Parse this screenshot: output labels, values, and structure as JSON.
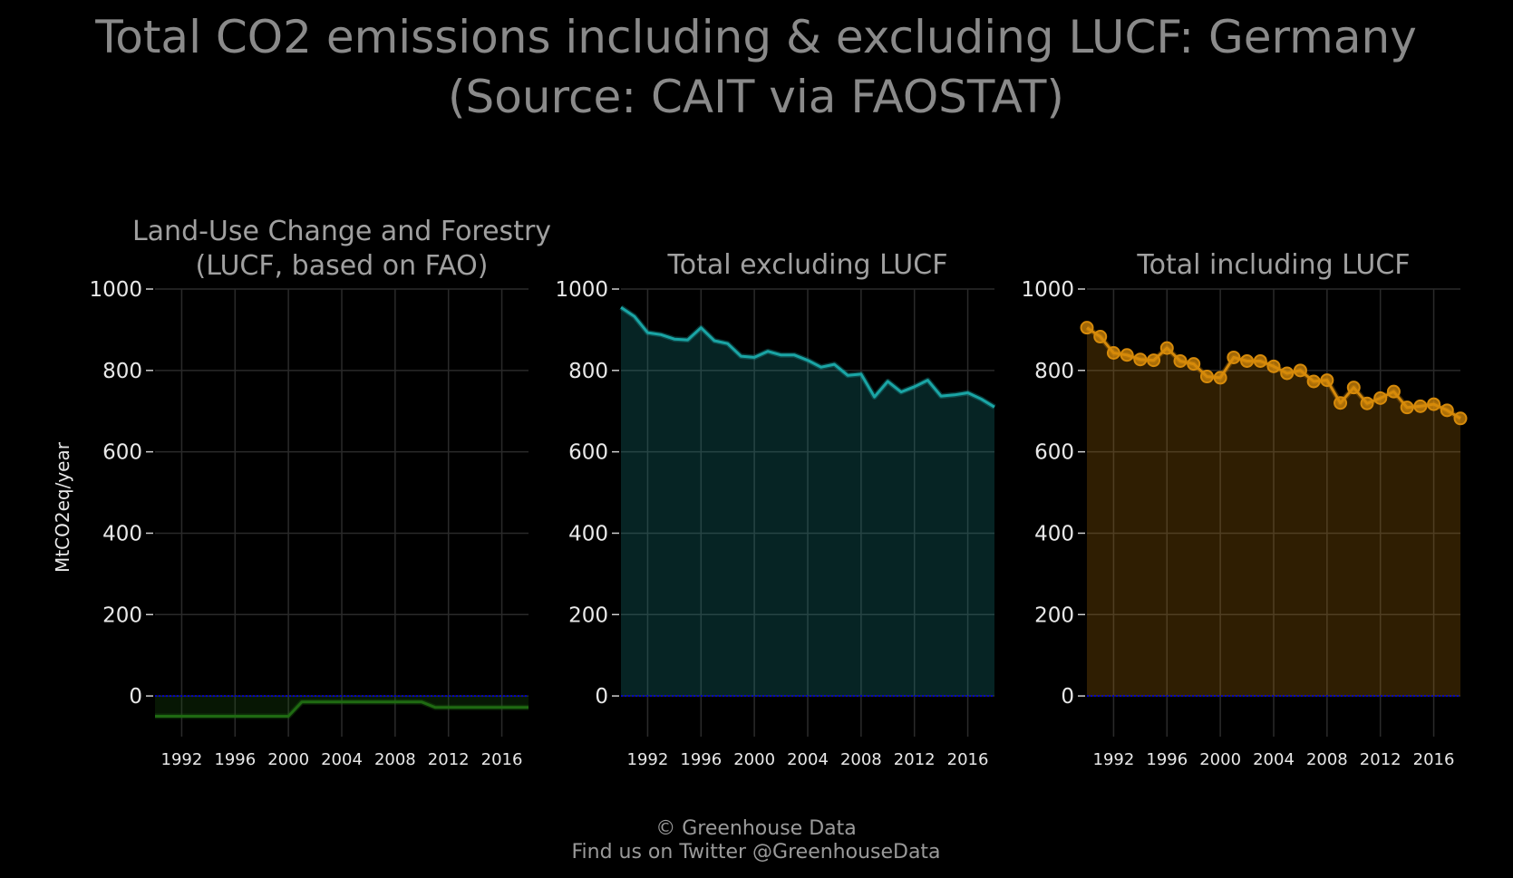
{
  "title": "Total CO2 emissions including & excluding LUCF: Germany",
  "subtitle": "(Source: CAIT via FAOSTAT)",
  "ylabel": "MtCO2eq/year",
  "footer": {
    "copyright": "© Greenhouse Data",
    "twitter": "Find us on Twitter @GreenhouseData"
  },
  "colors": {
    "background": "#000000",
    "grid": "#2a2a2a",
    "zero_line": "#0000cc",
    "lucf": "#1f6a12",
    "excl": "#1aa5a5",
    "incl": "#d68a0a"
  },
  "chart_data": [
    {
      "type": "area",
      "title_lines": [
        "Land-Use Change and Forestry",
        "(LUCF, based on FAO)"
      ],
      "ylim": [
        -100,
        1000
      ],
      "xlim": [
        1990,
        2018
      ],
      "yticks": [
        "1000",
        "800",
        "600",
        "400",
        "200",
        "0"
      ],
      "xticks": [
        "1992",
        "1996",
        "2000",
        "2004",
        "2008",
        "2012",
        "2016"
      ],
      "x": [
        1990,
        1991,
        1992,
        1993,
        1994,
        1995,
        1996,
        1997,
        1998,
        1999,
        2000,
        2001,
        2002,
        2003,
        2004,
        2005,
        2006,
        2007,
        2008,
        2009,
        2010,
        2011,
        2012,
        2013,
        2014,
        2015,
        2016,
        2017,
        2018
      ],
      "values": [
        -50,
        -50,
        -50,
        -50,
        -50,
        -50,
        -50,
        -50,
        -50,
        -50,
        -50,
        -15,
        -15,
        -15,
        -15,
        -15,
        -15,
        -15,
        -15,
        -15,
        -15,
        -28,
        -28,
        -28,
        -28,
        -28,
        -28,
        -28,
        -28
      ],
      "series_color": "lucf",
      "markers": false
    },
    {
      "type": "area",
      "title_lines": [
        "Total excluding LUCF"
      ],
      "ylim": [
        -100,
        1000
      ],
      "xlim": [
        1990,
        2018
      ],
      "yticks": [
        "1000",
        "800",
        "600",
        "400",
        "200",
        "0"
      ],
      "xticks": [
        "1992",
        "1996",
        "2000",
        "2004",
        "2008",
        "2012",
        "2016"
      ],
      "x": [
        1990,
        1991,
        1992,
        1993,
        1994,
        1995,
        1996,
        1997,
        1998,
        1999,
        2000,
        2001,
        2002,
        2003,
        2004,
        2005,
        2006,
        2007,
        2008,
        2009,
        2010,
        2011,
        2012,
        2013,
        2014,
        2015,
        2016,
        2017,
        2018
      ],
      "values": [
        955,
        933,
        893,
        888,
        877,
        875,
        905,
        873,
        866,
        835,
        832,
        847,
        838,
        838,
        825,
        808,
        815,
        788,
        791,
        735,
        773,
        747,
        760,
        776,
        737,
        740,
        745,
        730,
        710
      ],
      "series_color": "excl",
      "markers": false
    },
    {
      "type": "area",
      "title_lines": [
        "Total including LUCF"
      ],
      "ylim": [
        -100,
        1000
      ],
      "xlim": [
        1990,
        2018
      ],
      "yticks": [
        "1000",
        "800",
        "600",
        "400",
        "200",
        "0"
      ],
      "xticks": [
        "1992",
        "1996",
        "2000",
        "2004",
        "2008",
        "2012",
        "2016"
      ],
      "x": [
        1990,
        1991,
        1992,
        1993,
        1994,
        1995,
        1996,
        1997,
        1998,
        1999,
        2000,
        2001,
        2002,
        2003,
        2004,
        2005,
        2006,
        2007,
        2008,
        2009,
        2010,
        2011,
        2012,
        2013,
        2014,
        2015,
        2016,
        2017,
        2018
      ],
      "values": [
        905,
        883,
        843,
        838,
        827,
        825,
        855,
        823,
        816,
        785,
        782,
        832,
        823,
        823,
        810,
        793,
        800,
        773,
        776,
        720,
        758,
        719,
        732,
        748,
        709,
        712,
        717,
        702,
        682
      ],
      "series_color": "incl",
      "markers": true
    }
  ]
}
